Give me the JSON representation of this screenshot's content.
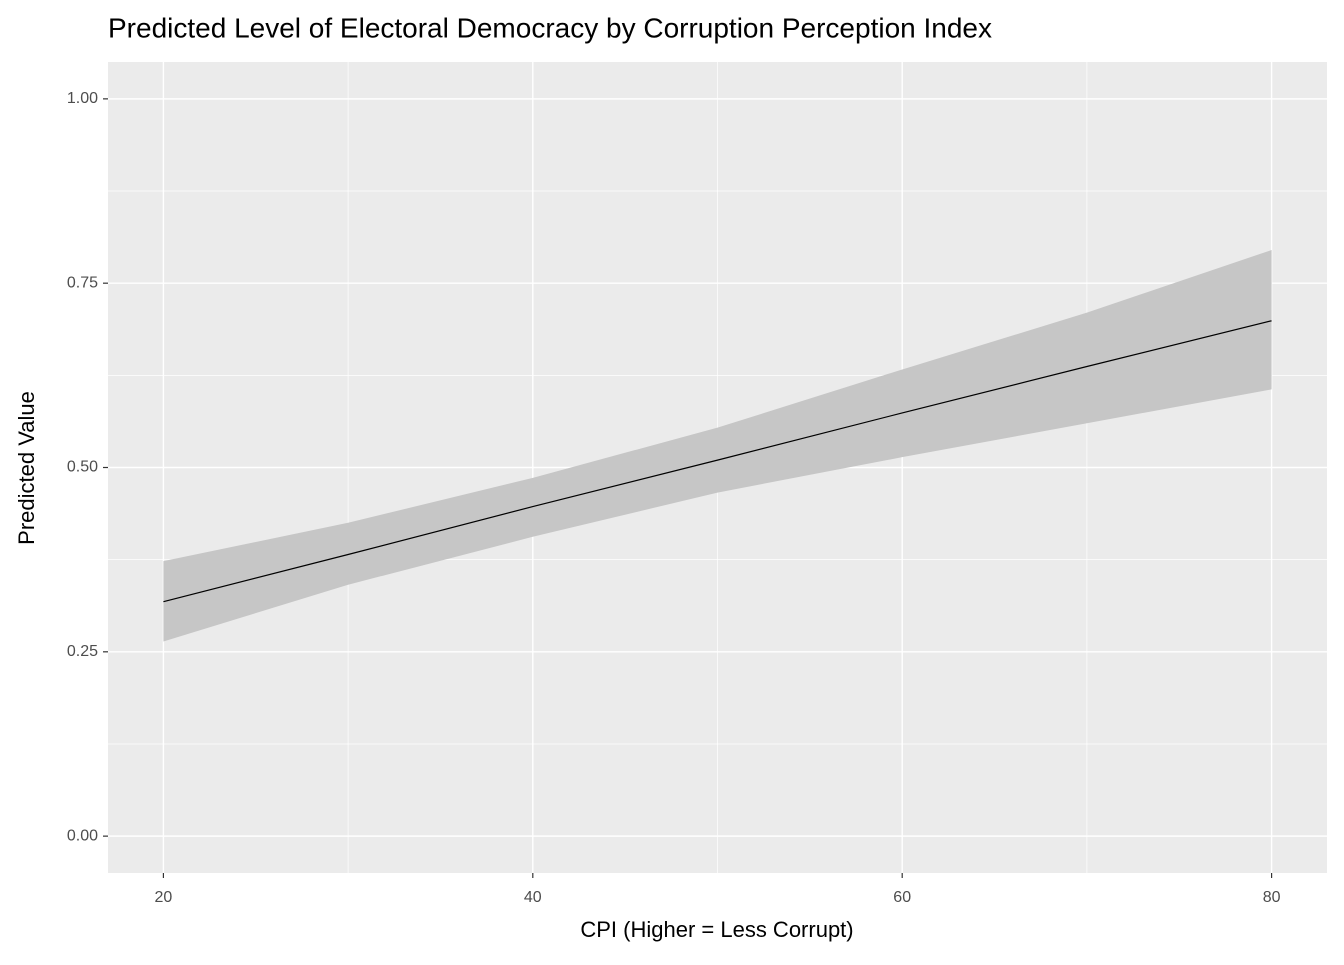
{
  "chart_data": {
    "type": "line",
    "title": "Predicted Level of Electoral Democracy by Corruption Perception Index",
    "x_label": "CPI (Higher = Less Corrupt)",
    "y_label": "Predicted Value",
    "x": [
      20,
      30,
      40,
      50,
      60,
      70,
      80
    ],
    "values": [
      0.318,
      0.382,
      0.447,
      0.51,
      0.574,
      0.637,
      0.699
    ],
    "lower": [
      0.264,
      0.341,
      0.406,
      0.466,
      0.514,
      0.56,
      0.606
    ],
    "upper": [
      0.373,
      0.425,
      0.486,
      0.554,
      0.633,
      0.71,
      0.795
    ],
    "color": "#000000",
    "band_color": "#c6c6c6",
    "xlim": [
      17,
      83
    ],
    "xticks": [
      20,
      40,
      60,
      80
    ],
    "minor_xticks": [
      30,
      50,
      70
    ],
    "ylim": [
      -0.05,
      1.05
    ],
    "yticks": [
      {
        "value": 0,
        "label": "0.00"
      },
      {
        "value": 0.25,
        "label": "0.25"
      },
      {
        "value": 0.5,
        "label": "0.50"
      },
      {
        "value": 0.75,
        "label": "0.75"
      },
      {
        "value": 1,
        "label": "1.00"
      }
    ],
    "minor_yticks": [
      0.125,
      0.375,
      0.625,
      0.875
    ],
    "grid": true
  }
}
